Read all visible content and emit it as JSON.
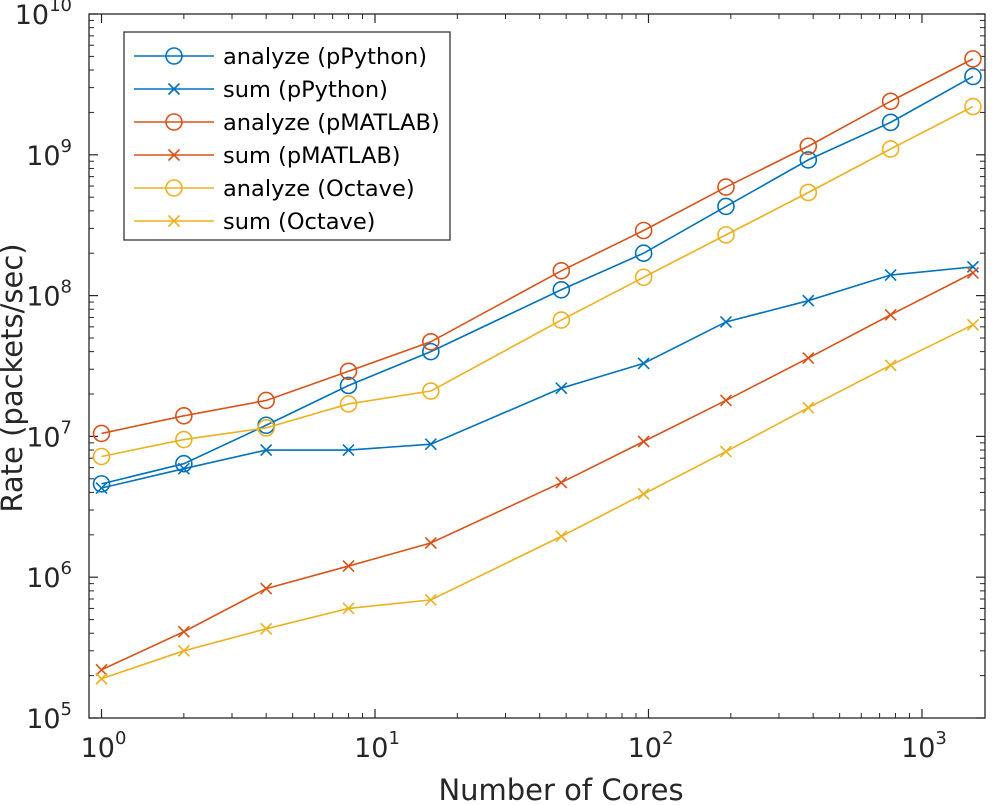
{
  "chart_data": {
    "type": "line",
    "xlabel": "Number of Cores",
    "ylabel": "Rate (packets/sec)",
    "xscale": "log",
    "yscale": "log",
    "xlim": [
      0.9,
      1700
    ],
    "ylim": [
      100000,
      10000000000
    ],
    "x_ticks": [
      1,
      10,
      100,
      1000
    ],
    "x_tick_labels": [
      {
        "base": "10",
        "exp": "0"
      },
      {
        "base": "10",
        "exp": "1"
      },
      {
        "base": "10",
        "exp": "2"
      },
      {
        "base": "10",
        "exp": "3"
      }
    ],
    "y_ticks": [
      100000,
      1000000,
      10000000,
      100000000,
      1000000000,
      10000000000
    ],
    "y_tick_labels": [
      {
        "base": "10",
        "exp": "5"
      },
      {
        "base": "10",
        "exp": "6"
      },
      {
        "base": "10",
        "exp": "7"
      },
      {
        "base": "10",
        "exp": "8"
      },
      {
        "base": "10",
        "exp": "9"
      },
      {
        "base": "10",
        "exp": "10"
      }
    ],
    "grid": false,
    "legend_position": "top-left",
    "x": [
      1,
      2,
      4,
      8,
      16,
      48,
      96,
      192,
      384,
      768,
      1536
    ],
    "series": [
      {
        "name": "analyze (pPython)",
        "color": "#0072BD",
        "marker": "circle",
        "values": [
          4600000,
          6400000,
          12000000,
          23000000,
          40000000,
          110000000,
          200000000,
          430000000,
          920000000,
          1700000000,
          3600000000
        ]
      },
      {
        "name": "sum (pPython)",
        "color": "#0072BD",
        "marker": "cross",
        "values": [
          4300000,
          5900000,
          8000000,
          8000000,
          8800000,
          22000000,
          33000000,
          65000000,
          92000000,
          140000000,
          160000000
        ]
      },
      {
        "name": "analyze (pMATLAB)",
        "color": "#D95319",
        "marker": "circle",
        "values": [
          10500000,
          14000000,
          18000000,
          29000000,
          47000000,
          150000000,
          290000000,
          590000000,
          1150000000,
          2400000000,
          4800000000
        ]
      },
      {
        "name": "sum (pMATLAB)",
        "color": "#D95319",
        "marker": "cross",
        "values": [
          220000,
          410000,
          830000,
          1200000,
          1750000,
          4700000,
          9200000,
          18000000,
          36000000,
          73000000,
          145000000
        ]
      },
      {
        "name": "analyze (Octave)",
        "color": "#EDB120",
        "marker": "circle",
        "values": [
          7200000,
          9500000,
          11500000,
          17000000,
          21000000,
          67000000,
          135000000,
          270000000,
          540000000,
          1100000000,
          2200000000
        ]
      },
      {
        "name": "sum (Octave)",
        "color": "#EDB120",
        "marker": "cross",
        "values": [
          190000,
          300000,
          430000,
          600000,
          690000,
          1950000,
          3900000,
          7800000,
          16000000,
          32000000,
          62000000
        ]
      }
    ]
  }
}
